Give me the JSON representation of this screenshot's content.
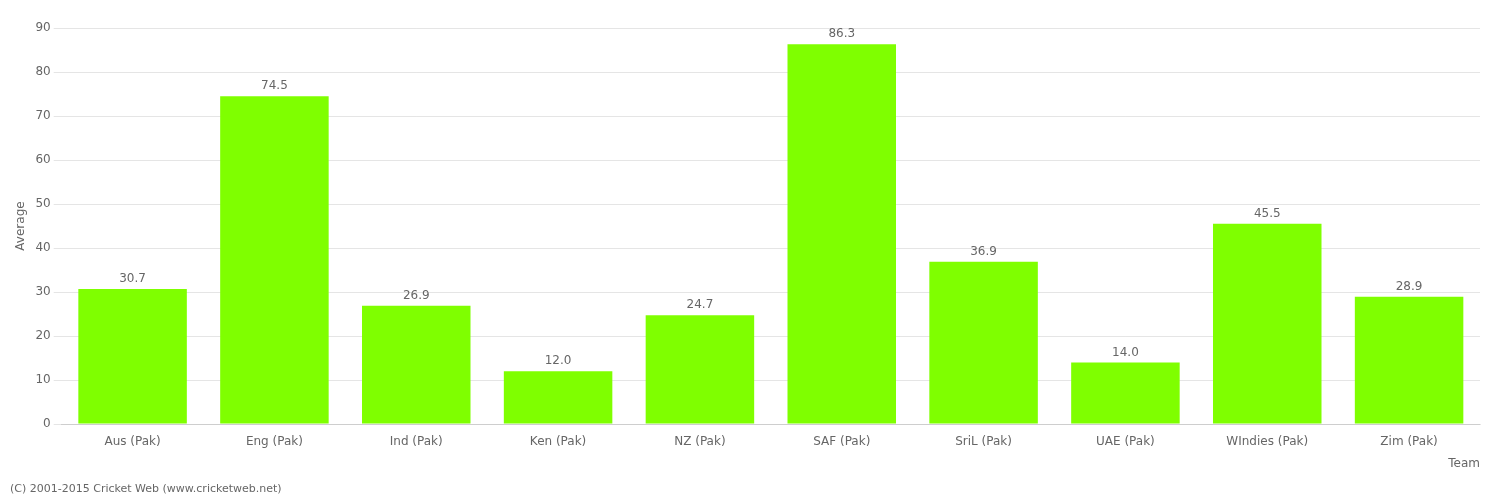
{
  "chart_data": {
    "type": "bar",
    "x_label": "Team",
    "y_label": "Average",
    "annotations": [
      "(C) 2001-2015 Cricket Web (www.cricketweb.net)"
    ],
    "categories": [
      "Aus (Pak)",
      "Eng (Pak)",
      "Ind (Pak)",
      "Ken (Pak)",
      "NZ (Pak)",
      "SAF (Pak)",
      "SriL (Pak)",
      "UAE (Pak)",
      "WIndies (Pak)",
      "Zim (Pak)"
    ],
    "values": [
      30.7,
      74.5,
      26.9,
      12.0,
      24.7,
      86.3,
      36.9,
      14.0,
      45.5,
      28.9
    ],
    "value_labels": [
      "30.7",
      "74.5",
      "26.9",
      "12.0",
      "24.7",
      "86.3",
      "36.9",
      "14.0",
      "45.5",
      "28.9"
    ],
    "data_labels": true,
    "color": "#7fff00",
    "ylim": [
      0,
      90
    ],
    "yticks": [
      0,
      10,
      20,
      30,
      40,
      50,
      60,
      70,
      80,
      90
    ],
    "grid": true
  }
}
